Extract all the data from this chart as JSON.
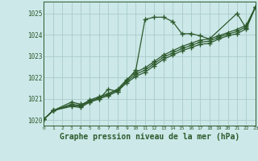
{
  "background_color": "#cce8e8",
  "grid_color": "#aacccc",
  "line_color": "#2d5a2d",
  "xlabel": "Graphe pression niveau de la mer (hPa)",
  "xlabel_fontsize": 7,
  "ylabel_ticks": [
    1020,
    1021,
    1022,
    1023,
    1024,
    1025
  ],
  "xlim": [
    0,
    23
  ],
  "ylim": [
    1019.75,
    1025.55
  ],
  "series": [
    {
      "x": [
        0,
        1,
        3,
        4,
        5,
        6,
        7,
        8,
        10,
        11,
        12,
        13,
        14,
        15,
        16,
        17,
        18,
        21,
        22,
        23
      ],
      "y": [
        1020.05,
        1020.45,
        1020.85,
        1020.75,
        1020.85,
        1021.0,
        1021.45,
        1021.35,
        1022.35,
        1024.72,
        1024.82,
        1024.82,
        1024.62,
        1024.05,
        1024.05,
        1023.95,
        1023.8,
        1025.0,
        1024.3,
        1025.3
      ]
    },
    {
      "x": [
        0,
        1,
        3,
        4,
        5,
        6,
        7,
        8,
        9,
        10,
        11,
        12,
        13,
        14,
        15,
        16,
        17,
        18,
        19,
        20,
        21,
        22,
        23
      ],
      "y": [
        1020.05,
        1020.45,
        1020.75,
        1020.7,
        1020.95,
        1021.1,
        1021.25,
        1021.45,
        1021.9,
        1022.25,
        1022.45,
        1022.75,
        1023.05,
        1023.25,
        1023.45,
        1023.6,
        1023.75,
        1023.8,
        1023.95,
        1024.1,
        1024.25,
        1024.45,
        1025.3
      ]
    },
    {
      "x": [
        0,
        1,
        3,
        4,
        5,
        6,
        7,
        8,
        9,
        10,
        11,
        12,
        13,
        14,
        15,
        16,
        17,
        18,
        19,
        20,
        21,
        22,
        23
      ],
      "y": [
        1020.05,
        1020.45,
        1020.7,
        1020.65,
        1020.9,
        1021.05,
        1021.2,
        1021.4,
        1021.82,
        1022.15,
        1022.35,
        1022.65,
        1022.95,
        1023.15,
        1023.35,
        1023.5,
        1023.65,
        1023.7,
        1023.88,
        1024.03,
        1024.15,
        1024.38,
        1025.3
      ]
    },
    {
      "x": [
        0,
        1,
        3,
        4,
        5,
        6,
        7,
        8,
        9,
        10,
        11,
        12,
        13,
        14,
        15,
        16,
        17,
        18,
        19,
        20,
        21,
        22,
        23
      ],
      "y": [
        1020.05,
        1020.45,
        1020.65,
        1020.6,
        1020.85,
        1021.0,
        1021.15,
        1021.35,
        1021.75,
        1022.05,
        1022.25,
        1022.55,
        1022.85,
        1023.05,
        1023.25,
        1023.4,
        1023.55,
        1023.6,
        1023.8,
        1023.95,
        1024.05,
        1024.28,
        1025.3
      ]
    }
  ]
}
